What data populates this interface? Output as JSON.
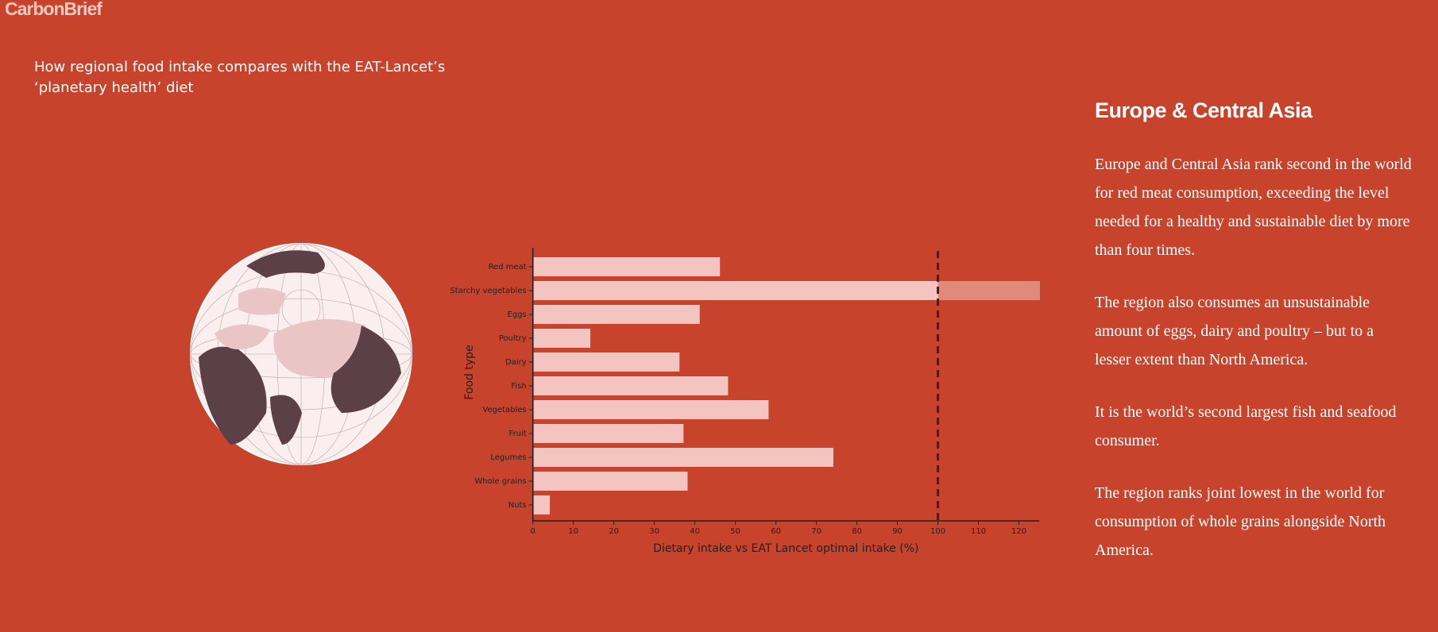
{
  "logo": "CarbonBrief",
  "header_title": "How regional food intake compares with the EAT-Lancet’s ‘planetary health’ diet",
  "chart_data": {
    "type": "bar",
    "orientation": "horizontal",
    "categories": [
      "Red meat",
      "Starchy vegetables",
      "Eggs",
      "Poultry",
      "Dairy",
      "Fish",
      "Vegetables",
      "Fruit",
      "Legumes",
      "Whole grains",
      "Nuts"
    ],
    "values": [
      46,
      125,
      41,
      14,
      36,
      48,
      58,
      37,
      74,
      38,
      4
    ],
    "color": "#f4c4c0",
    "over_color": "#e08a7c",
    "reference_line": 100,
    "xlim": [
      0,
      125
    ],
    "xticks": [
      0,
      10,
      20,
      30,
      40,
      50,
      60,
      70,
      80,
      90,
      100,
      110,
      120
    ],
    "x_label": "Dietary intake vs EAT Lancet optimal intake (%)",
    "y_label": "Food type"
  },
  "panel": {
    "title": "Europe & Central Asia",
    "paragraphs": [
      "Europe and Central Asia rank second in the world for red meat consumption, exceeding the level needed for a healthy and sustainable diet by more than four times.",
      "The region also consumes an unsustainable amount of eggs, dairy and poultry – but to a lesser extent than North America.",
      "It is the world’s second largest fish and seafood consumer.",
      "The region ranks joint lowest in the world for consumption of whole grains alongside North America."
    ]
  }
}
